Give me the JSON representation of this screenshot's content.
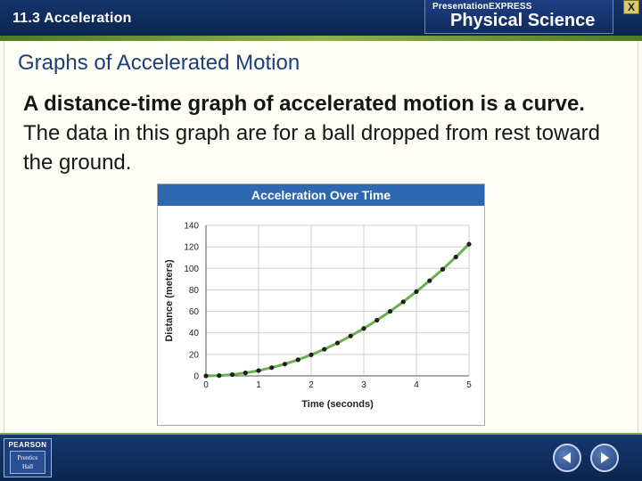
{
  "header": {
    "section_title": "11.3 Acceleration",
    "brand_small": "PresentationEXPRESS",
    "brand_big": "Physical Science",
    "close_label": "X"
  },
  "slide": {
    "heading": "Graphs of Accelerated Motion",
    "body_bold": "A distance-time graph of accelerated motion is a curve.",
    "body_rest": " The data in this graph are for a ball dropped from rest toward the ground."
  },
  "footer": {
    "logo_top": "PEARSON",
    "logo_line1": "Prentice",
    "logo_line2": "Hall",
    "prev_icon": "prev-arrow-icon",
    "next_icon": "next-arrow-icon"
  },
  "colors": {
    "curve": "#6ab04c",
    "points": "#1f1f1f",
    "grid": "#cfcfcf",
    "header": "#2d68b0"
  },
  "chart_data": {
    "type": "line",
    "title": "Acceleration Over Time",
    "xlabel": "Time (seconds)",
    "ylabel": "Distance (meters)",
    "xlim": [
      0,
      5
    ],
    "ylim": [
      0,
      140
    ],
    "xticks": [
      0,
      1,
      2,
      3,
      4,
      5
    ],
    "yticks": [
      0,
      20,
      40,
      60,
      80,
      100,
      120,
      140
    ],
    "grid": true,
    "series": [
      {
        "x": [
          0,
          0.25,
          0.5,
          0.75,
          1,
          1.25,
          1.5,
          1.75,
          2,
          2.25,
          2.5,
          2.75,
          3,
          3.25,
          3.5,
          3.75,
          4,
          4.25,
          4.5,
          4.75,
          5
        ],
        "values": [
          0,
          0.3,
          1.2,
          2.8,
          4.9,
          7.7,
          11,
          15,
          19.6,
          24.8,
          30.6,
          37.1,
          44.1,
          51.8,
          60,
          68.9,
          78.4,
          88.5,
          99.2,
          110.6,
          122.5
        ]
      }
    ]
  }
}
